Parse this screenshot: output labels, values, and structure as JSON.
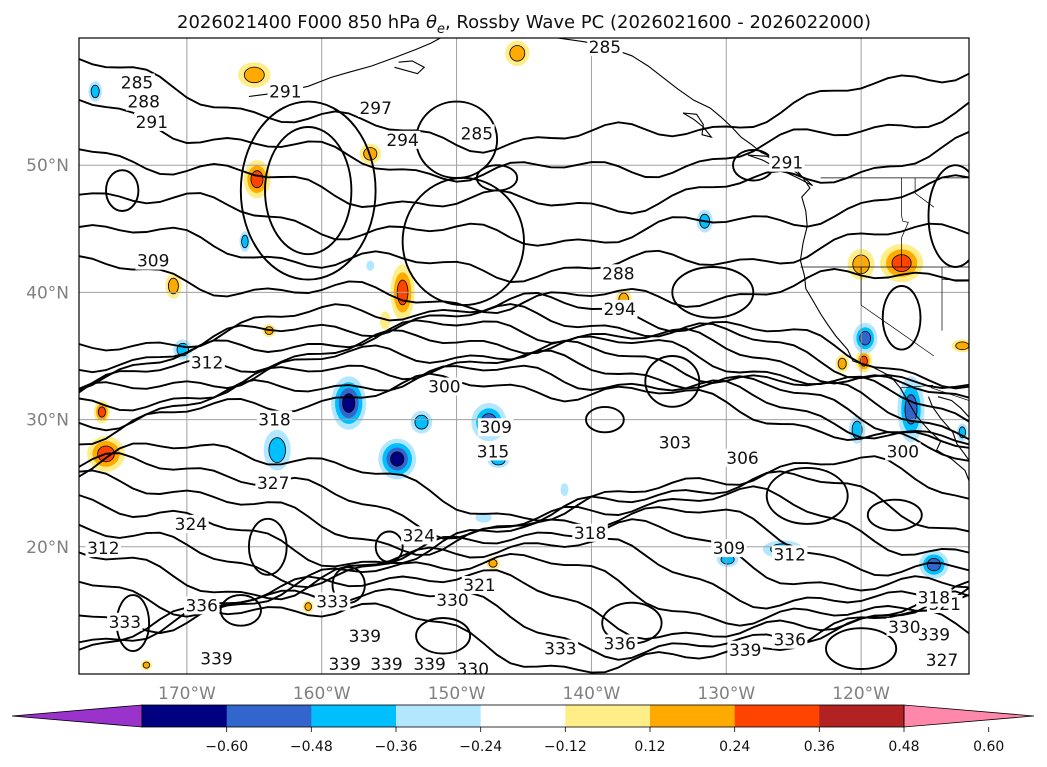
{
  "title": {
    "prefix": "2026021400 F000 850 hPa ",
    "theta": "θ",
    "sub": "e",
    "suffix": ", Rossby Wave PC (2026021600 - 2026022000)"
  },
  "map": {
    "lon_range": [
      -178,
      -112
    ],
    "lat_range": [
      10,
      60
    ],
    "lat_ticks": [
      {
        "value": 50,
        "label": "50°N"
      },
      {
        "value": 40,
        "label": "40°N"
      },
      {
        "value": 30,
        "label": "30°N"
      },
      {
        "value": 20,
        "label": "20°N"
      }
    ],
    "lon_ticks": [
      {
        "value": -170,
        "label": "170°W"
      },
      {
        "value": -160,
        "label": "160°W"
      },
      {
        "value": -150,
        "label": "150°W"
      },
      {
        "value": -140,
        "label": "140°W"
      },
      {
        "value": -130,
        "label": "130°W"
      },
      {
        "value": -120,
        "label": "120°W"
      }
    ],
    "gridlines": true,
    "contour_variable": "850 hPa θe",
    "contour_labels": [
      {
        "text": "285",
        "lon": -173.7,
        "lat": 56.5
      },
      {
        "text": "288",
        "lon": -173.2,
        "lat": 55.0
      },
      {
        "text": "291",
        "lon": -172.6,
        "lat": 53.4
      },
      {
        "text": "291",
        "lon": -162.7,
        "lat": 55.8
      },
      {
        "text": "297",
        "lon": -156.0,
        "lat": 54.5
      },
      {
        "text": "294",
        "lon": -154.0,
        "lat": 52.0
      },
      {
        "text": "285",
        "lon": -148.5,
        "lat": 52.5
      },
      {
        "text": "285",
        "lon": -139.0,
        "lat": 59.3
      },
      {
        "text": "291",
        "lon": -125.5,
        "lat": 50.2
      },
      {
        "text": "309",
        "lon": -172.5,
        "lat": 42.5
      },
      {
        "text": "288",
        "lon": -138.0,
        "lat": 41.5
      },
      {
        "text": "294",
        "lon": -137.9,
        "lat": 38.7
      },
      {
        "text": "312",
        "lon": -168.5,
        "lat": 34.5
      },
      {
        "text": "300",
        "lon": -150.9,
        "lat": 32.6
      },
      {
        "text": "318",
        "lon": -163.5,
        "lat": 30.0
      },
      {
        "text": "309",
        "lon": -147.1,
        "lat": 29.4
      },
      {
        "text": "315",
        "lon": -147.3,
        "lat": 27.5
      },
      {
        "text": "303",
        "lon": -133.8,
        "lat": 28.2
      },
      {
        "text": "306",
        "lon": -128.8,
        "lat": 27.0
      },
      {
        "text": "300",
        "lon": -116.9,
        "lat": 27.5
      },
      {
        "text": "327",
        "lon": -163.6,
        "lat": 25.0
      },
      {
        "text": "324",
        "lon": -169.7,
        "lat": 21.8
      },
      {
        "text": "324",
        "lon": -152.8,
        "lat": 20.9
      },
      {
        "text": "318",
        "lon": -140.1,
        "lat": 21.1
      },
      {
        "text": "312",
        "lon": -176.2,
        "lat": 19.9
      },
      {
        "text": "309",
        "lon": -129.8,
        "lat": 19.9
      },
      {
        "text": "312",
        "lon": -125.3,
        "lat": 19.4
      },
      {
        "text": "321",
        "lon": -148.3,
        "lat": 17.0
      },
      {
        "text": "330",
        "lon": -150.3,
        "lat": 15.8
      },
      {
        "text": "333",
        "lon": -174.6,
        "lat": 14.1
      },
      {
        "text": "336",
        "lon": -168.9,
        "lat": 15.4
      },
      {
        "text": "333",
        "lon": -159.2,
        "lat": 15.7
      },
      {
        "text": "339",
        "lon": -156.8,
        "lat": 13.0
      },
      {
        "text": "333",
        "lon": -142.3,
        "lat": 12.0
      },
      {
        "text": "336",
        "lon": -137.9,
        "lat": 12.4
      },
      {
        "text": "339",
        "lon": -128.6,
        "lat": 11.9
      },
      {
        "text": "336",
        "lon": -125.3,
        "lat": 12.7
      },
      {
        "text": "339",
        "lon": -167.8,
        "lat": 11.2
      },
      {
        "text": "339",
        "lon": -158.3,
        "lat": 10.8
      },
      {
        "text": "339",
        "lon": -155.2,
        "lat": 10.8
      },
      {
        "text": "339",
        "lon": -152.0,
        "lat": 10.8
      },
      {
        "text": "330",
        "lon": -148.8,
        "lat": 10.4
      },
      {
        "text": "339",
        "lon": -114.6,
        "lat": 13.1
      },
      {
        "text": "330",
        "lon": -116.8,
        "lat": 13.7
      },
      {
        "text": "321",
        "lon": -113.8,
        "lat": 15.5
      },
      {
        "text": "318",
        "lon": -114.6,
        "lat": 16.0
      },
      {
        "text": "327",
        "lon": -114.0,
        "lat": 11.1
      }
    ],
    "shaded_anomalies": [
      {
        "lon": -165.0,
        "lat": 57.1,
        "rlon": 1.2,
        "rlat": 1.0,
        "value": 0.3
      },
      {
        "lon": -164.8,
        "lat": 48.9,
        "rlon": 1.0,
        "rlat": 1.5,
        "value": 0.45
      },
      {
        "lon": -156.4,
        "lat": 50.9,
        "rlon": 0.8,
        "rlat": 0.8,
        "value": 0.28
      },
      {
        "lon": -145.5,
        "lat": 58.8,
        "rlon": 0.9,
        "rlat": 1.0,
        "value": 0.3
      },
      {
        "lon": -171.0,
        "lat": 40.5,
        "rlon": 0.6,
        "rlat": 1.0,
        "value": 0.3
      },
      {
        "lon": -154.0,
        "lat": 40.0,
        "rlon": 0.9,
        "rlat": 2.2,
        "value": 0.42
      },
      {
        "lon": -155.3,
        "lat": 37.8,
        "rlon": 0.4,
        "rlat": 0.7,
        "value": 0.2
      },
      {
        "lon": -163.9,
        "lat": 37.0,
        "rlon": 0.5,
        "rlat": 0.5,
        "value": 0.25
      },
      {
        "lon": -137.6,
        "lat": 39.4,
        "rlon": 0.6,
        "rlat": 0.9,
        "value": 0.3
      },
      {
        "lon": -117.0,
        "lat": 42.3,
        "rlon": 1.6,
        "rlat": 1.5,
        "value": 0.4
      },
      {
        "lon": -120.0,
        "lat": 42.2,
        "rlon": 1.0,
        "rlat": 1.2,
        "value": 0.3
      },
      {
        "lon": -176.0,
        "lat": 27.3,
        "rlon": 1.4,
        "rlat": 1.4,
        "value": 0.45
      },
      {
        "lon": -176.3,
        "lat": 30.6,
        "rlon": 0.6,
        "rlat": 0.9,
        "value": 0.38
      },
      {
        "lon": -121.4,
        "lat": 34.4,
        "rlon": 0.5,
        "rlat": 0.7,
        "value": 0.3
      },
      {
        "lon": -119.8,
        "lat": 34.6,
        "rlon": 0.6,
        "rlat": 0.9,
        "value": 0.4
      },
      {
        "lon": -112.5,
        "lat": 35.8,
        "rlon": 0.8,
        "rlat": 0.5,
        "value": 0.3
      },
      {
        "lon": -147.3,
        "lat": 18.7,
        "rlon": 0.5,
        "rlat": 0.5,
        "value": 0.25
      },
      {
        "lon": -173.0,
        "lat": 10.7,
        "rlon": 0.4,
        "rlat": 0.4,
        "value": 0.25
      },
      {
        "lon": -161.0,
        "lat": 15.3,
        "rlon": 0.4,
        "rlat": 0.5,
        "value": 0.25
      },
      {
        "lon": -176.8,
        "lat": 55.8,
        "rlon": 0.5,
        "rlat": 0.8,
        "value": -0.3
      },
      {
        "lon": -158.0,
        "lat": 31.3,
        "rlon": 1.3,
        "rlat": 2.1,
        "value": -0.55
      },
      {
        "lon": -154.4,
        "lat": 26.9,
        "rlon": 1.4,
        "rlat": 1.6,
        "value": -0.5
      },
      {
        "lon": -147.6,
        "lat": 29.8,
        "rlon": 1.3,
        "rlat": 1.5,
        "value": -0.45
      },
      {
        "lon": -152.6,
        "lat": 29.8,
        "rlon": 0.8,
        "rlat": 0.9,
        "value": -0.3
      },
      {
        "lon": -163.3,
        "lat": 27.6,
        "rlon": 1.0,
        "rlat": 1.6,
        "value": -0.32
      },
      {
        "lon": -170.3,
        "lat": 35.5,
        "rlon": 0.7,
        "rlat": 0.8,
        "value": -0.3
      },
      {
        "lon": -146.9,
        "lat": 26.8,
        "rlon": 0.8,
        "rlat": 0.6,
        "value": -0.3
      },
      {
        "lon": -119.7,
        "lat": 36.4,
        "rlon": 0.9,
        "rlat": 1.2,
        "value": -0.36
      },
      {
        "lon": -116.3,
        "lat": 30.8,
        "rlon": 1.0,
        "rlat": 2.6,
        "value": -0.42
      },
      {
        "lon": -120.3,
        "lat": 29.2,
        "rlon": 0.6,
        "rlat": 1.1,
        "value": -0.3
      },
      {
        "lon": -131.6,
        "lat": 45.6,
        "rlon": 0.6,
        "rlat": 0.9,
        "value": -0.3
      },
      {
        "lon": -125.8,
        "lat": 19.8,
        "rlon": 1.5,
        "rlat": 0.7,
        "value": -0.32
      },
      {
        "lon": -129.9,
        "lat": 19.0,
        "rlon": 0.8,
        "rlat": 0.6,
        "value": -0.28
      },
      {
        "lon": -114.6,
        "lat": 18.6,
        "rlon": 1.1,
        "rlat": 1.1,
        "value": -0.45
      },
      {
        "lon": -112.5,
        "lat": 29.0,
        "rlon": 0.4,
        "rlat": 0.7,
        "value": -0.3
      },
      {
        "lon": -165.7,
        "lat": 44.0,
        "rlon": 0.4,
        "rlat": 0.8,
        "value": -0.26
      },
      {
        "lon": -156.4,
        "lat": 42.1,
        "rlon": 0.3,
        "rlat": 0.4,
        "value": -0.22
      },
      {
        "lon": -148.0,
        "lat": 22.3,
        "rlon": 0.6,
        "rlat": 0.4,
        "value": -0.2
      },
      {
        "lon": -142.0,
        "lat": 24.5,
        "rlon": 0.3,
        "rlat": 0.5,
        "value": -0.2
      }
    ],
    "coastline_segments": [
      [
        [
          -165.4,
          55.4
        ],
        [
          -163.2,
          55.7
        ],
        [
          -161.0,
          56.2
        ],
        [
          -159.3,
          56.9
        ],
        [
          -158.0,
          57.3
        ],
        [
          -156.3,
          57.8
        ],
        [
          -154.5,
          58.5
        ],
        [
          -153.0,
          59.1
        ],
        [
          -151.9,
          59.6
        ],
        [
          -151.2,
          60.0
        ]
      ],
      [
        [
          -154.6,
          57.7
        ],
        [
          -152.9,
          57.2
        ],
        [
          -152.4,
          57.7
        ],
        [
          -153.3,
          58.2
        ],
        [
          -154.3,
          58.1
        ]
      ],
      [
        [
          -142.5,
          60.0
        ],
        [
          -140.5,
          59.7
        ],
        [
          -138.6,
          59.2
        ],
        [
          -137.0,
          58.6
        ],
        [
          -135.8,
          57.8
        ],
        [
          -134.7,
          56.9
        ],
        [
          -133.6,
          56.0
        ],
        [
          -132.4,
          55.1
        ],
        [
          -131.2,
          54.5
        ],
        [
          -130.4,
          53.8
        ],
        [
          -129.6,
          53.0
        ],
        [
          -128.9,
          52.2
        ],
        [
          -128.1,
          51.6
        ],
        [
          -127.4,
          51.0
        ],
        [
          -126.1,
          50.4
        ],
        [
          -125.0,
          49.9
        ],
        [
          -124.3,
          49.0
        ],
        [
          -123.8,
          48.2
        ],
        [
          -124.4,
          47.5
        ],
        [
          -124.1,
          46.4
        ],
        [
          -124.0,
          45.2
        ],
        [
          -124.3,
          43.9
        ],
        [
          -124.5,
          42.5
        ],
        [
          -124.2,
          41.3
        ],
        [
          -124.1,
          40.3
        ],
        [
          -123.6,
          39.4
        ],
        [
          -123.0,
          38.3
        ],
        [
          -122.5,
          37.5
        ],
        [
          -121.9,
          36.6
        ],
        [
          -121.0,
          35.5
        ],
        [
          -120.6,
          34.6
        ],
        [
          -119.1,
          34.1
        ],
        [
          -117.8,
          33.4
        ],
        [
          -117.1,
          32.5
        ],
        [
          -116.5,
          31.4
        ],
        [
          -115.9,
          30.3
        ],
        [
          -115.0,
          29.2
        ],
        [
          -114.1,
          28.3
        ],
        [
          -114.4,
          27.6
        ],
        [
          -113.3,
          26.9
        ],
        [
          -112.3,
          26.0
        ],
        [
          -112.0,
          25.2
        ]
      ],
      [
        [
          -133.2,
          54.1
        ],
        [
          -132.2,
          54.0
        ],
        [
          -131.7,
          53.2
        ],
        [
          -131.8,
          52.4
        ],
        [
          -131.1,
          52.2
        ],
        [
          -131.7,
          53.0
        ],
        [
          -132.4,
          53.6
        ],
        [
          -133.2,
          54.1
        ]
      ],
      [
        [
          -128.4,
          50.8
        ],
        [
          -127.3,
          50.4
        ],
        [
          -125.9,
          49.6
        ],
        [
          -124.7,
          49.0
        ],
        [
          -123.6,
          48.4
        ],
        [
          -124.0,
          48.8
        ],
        [
          -125.4,
          49.9
        ],
        [
          -127.0,
          50.7
        ],
        [
          -128.4,
          50.8
        ]
      ],
      [
        [
          -115.0,
          31.8
        ],
        [
          -114.7,
          31.0
        ],
        [
          -114.1,
          30.1
        ],
        [
          -113.2,
          29.0
        ],
        [
          -112.9,
          28.1
        ],
        [
          -112.4,
          27.4
        ],
        [
          -112.0,
          26.8
        ]
      ],
      [
        [
          -112.0,
          30.2
        ],
        [
          -112.6,
          30.9
        ],
        [
          -113.3,
          31.5
        ],
        [
          -114.3,
          31.8
        ]
      ]
    ],
    "border_segments": [
      [
        [
          -123.0,
          49.0
        ],
        [
          -112.0,
          49.0
        ]
      ],
      [
        [
          -117.1,
          32.5
        ],
        [
          -114.7,
          32.7
        ],
        [
          -114.8,
          32.5
        ],
        [
          -112.0,
          31.5
        ]
      ],
      [
        [
          -120.0,
          42.0
        ],
        [
          -112.0,
          42.0
        ]
      ],
      [
        [
          -120.0,
          42.0
        ],
        [
          -120.0,
          39.0
        ],
        [
          -114.6,
          35.0
        ]
      ],
      [
        [
          -124.5,
          42.0
        ],
        [
          -120.0,
          42.0
        ]
      ],
      [
        [
          -117.0,
          49.0
        ],
        [
          -117.0,
          46.0
        ],
        [
          -116.9,
          45.6
        ],
        [
          -116.5,
          45.5
        ],
        [
          -117.0,
          44.3
        ],
        [
          -117.0,
          42.0
        ]
      ],
      [
        [
          -114.0,
          41.0
        ],
        [
          -114.0,
          42.0
        ]
      ],
      [
        [
          -114.0,
          37.0
        ],
        [
          -114.0,
          41.0
        ],
        [
          -112.0,
          41.0
        ]
      ],
      [
        [
          -116.0,
          49.0
        ],
        [
          -116.0,
          47.8
        ],
        [
          -114.6,
          46.7
        ]
      ]
    ]
  },
  "colorbar": {
    "bounds": [
      -0.72,
      -0.6,
      -0.48,
      -0.36,
      -0.24,
      -0.12,
      0.12,
      0.24,
      0.36,
      0.48,
      0.6,
      0.72
    ],
    "colors": [
      "#9933cc",
      "#000080",
      "#3366cc",
      "#00bfff",
      "#b3e6ff",
      "#ffffff",
      "#ffee88",
      "#ffaa00",
      "#ff4400",
      "#b22222",
      "#ff88aa"
    ],
    "tick_labels": [
      "−0.60",
      "−0.48",
      "−0.36",
      "−0.24",
      "−0.12",
      "0.12",
      "0.24",
      "0.36",
      "0.48",
      "0.60"
    ],
    "tick_values": [
      -0.6,
      -0.48,
      -0.36,
      -0.24,
      -0.12,
      0.12,
      0.24,
      0.36,
      0.48,
      0.6
    ],
    "extend": "both"
  }
}
